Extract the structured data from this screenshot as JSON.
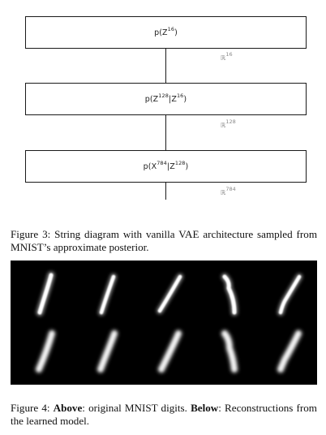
{
  "diagram": {
    "nodes": [
      {
        "prefix": "p(Z",
        "sup1": "16",
        "mid": ")",
        "sup2": "",
        "suffix": ""
      },
      {
        "prefix": "p(Z",
        "sup1": "128",
        "mid": "|Z",
        "sup2": "16",
        "suffix": ")"
      },
      {
        "prefix": "p(X",
        "sup1": "784",
        "mid": "|Z",
        "sup2": "128",
        "suffix": ")"
      }
    ],
    "spaces": [
      {
        "symbol": "ℝ",
        "exp": "16"
      },
      {
        "symbol": "ℝ",
        "exp": "128"
      },
      {
        "symbol": "ℝ",
        "exp": "784"
      }
    ]
  },
  "figure3": {
    "label": "Figure 3:",
    "text": "String diagram with vanilla VAE architecture sampled from MNIST’s approximate posterior."
  },
  "digits": {
    "rows": [
      "original",
      "reconstruction"
    ],
    "count_per_row": 5,
    "digit_class": "1"
  },
  "figure4": {
    "label": "Figure 4:",
    "above_label": "Above",
    "above_text": ": original MNIST digits.",
    "below_label": "Below",
    "below_text": ": Reconstructions from the learned model."
  }
}
